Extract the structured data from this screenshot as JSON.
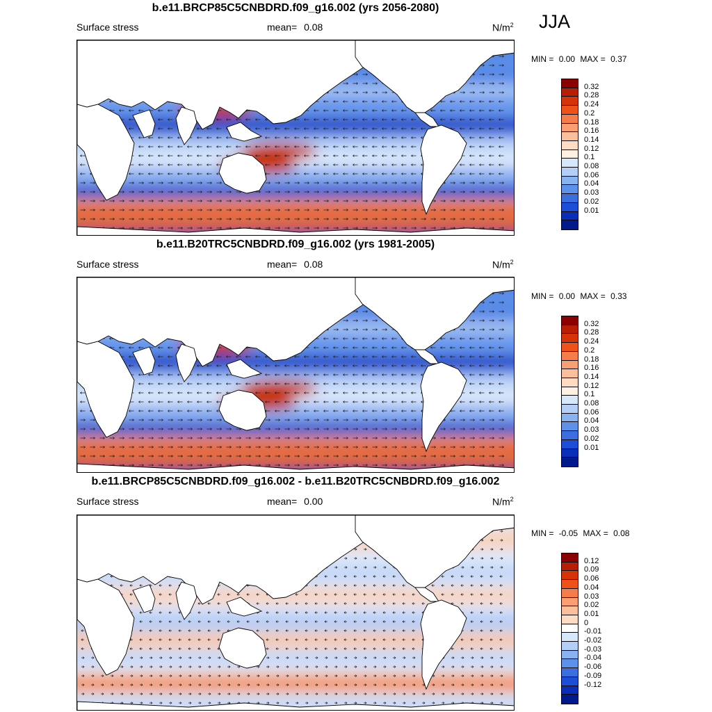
{
  "season": "JJA",
  "panels": [
    {
      "title": "b.e11.BRCP85C5CNBDRD.f09_g16.002 (yrs 2056-2080)",
      "left_label": "Surface stress",
      "mean_label": "mean=",
      "mean_value": "0.08",
      "units_base": "N/m",
      "units_exp": "2",
      "min_label": "MIN =",
      "min_value": "0.00",
      "max_label": "MAX =",
      "max_value": "0.37",
      "colorbar": {
        "ticks": [
          "0.32",
          "0.28",
          "0.24",
          "0.2",
          "0.18",
          "0.16",
          "0.14",
          "0.12",
          "0.1",
          "0.08",
          "0.06",
          "0.04",
          "0.03",
          "0.02",
          "0.01"
        ],
        "colors": [
          "#8b0000",
          "#b81d05",
          "#d63408",
          "#ee5219",
          "#f67c4a",
          "#fa9e74",
          "#fbbf9c",
          "#fddcc3",
          "#fff1e2",
          "#d8e8fb",
          "#b3cff7",
          "#89b2f0",
          "#5e91ea",
          "#3b6fe0",
          "#1d4ed8",
          "#0a2eb8",
          "#001a8e"
        ]
      }
    },
    {
      "title": "b.e11.B20TRC5CNBDRD.f09_g16.002 (yrs 1981-2005)",
      "left_label": "Surface stress",
      "mean_label": "mean=",
      "mean_value": "0.08",
      "units_base": "N/m",
      "units_exp": "2",
      "min_label": "MIN =",
      "min_value": "0.00",
      "max_label": "MAX =",
      "max_value": "0.33",
      "colorbar": {
        "ticks": [
          "0.32",
          "0.28",
          "0.24",
          "0.2",
          "0.18",
          "0.16",
          "0.14",
          "0.12",
          "0.1",
          "0.08",
          "0.06",
          "0.04",
          "0.03",
          "0.02",
          "0.01"
        ],
        "colors": [
          "#8b0000",
          "#b81d05",
          "#d63408",
          "#ee5219",
          "#f67c4a",
          "#fa9e74",
          "#fbbf9c",
          "#fddcc3",
          "#fff1e2",
          "#d8e8fb",
          "#b3cff7",
          "#89b2f0",
          "#5e91ea",
          "#3b6fe0",
          "#1d4ed8",
          "#0a2eb8",
          "#001a8e"
        ]
      }
    },
    {
      "title": "b.e11.BRCP85C5CNBDRD.f09_g16.002 - b.e11.B20TRC5CNBDRD.f09_g16.002",
      "left_label": "Surface stress",
      "mean_label": "mean=",
      "mean_value": "0.00",
      "units_base": "N/m",
      "units_exp": "2",
      "min_label": "MIN =",
      "min_value": "-0.05",
      "max_label": "MAX =",
      "max_value": "0.08",
      "colorbar": {
        "ticks": [
          "0.12",
          "0.09",
          "0.06",
          "0.04",
          "0.03",
          "0.02",
          "0.01",
          "0",
          "-0.01",
          "-0.02",
          "-0.03",
          "-0.04",
          "-0.06",
          "-0.09",
          "-0.12"
        ],
        "colors": [
          "#8b0000",
          "#b81d05",
          "#d63408",
          "#ee5219",
          "#f67c4a",
          "#fa9e74",
          "#fbbf9c",
          "#fddcc3",
          "#ffffff",
          "#d8e8fb",
          "#b3cff7",
          "#89b2f0",
          "#5e91ea",
          "#3b6fe0",
          "#1d4ed8",
          "#0a2eb8",
          "#001a8e"
        ]
      }
    }
  ]
}
